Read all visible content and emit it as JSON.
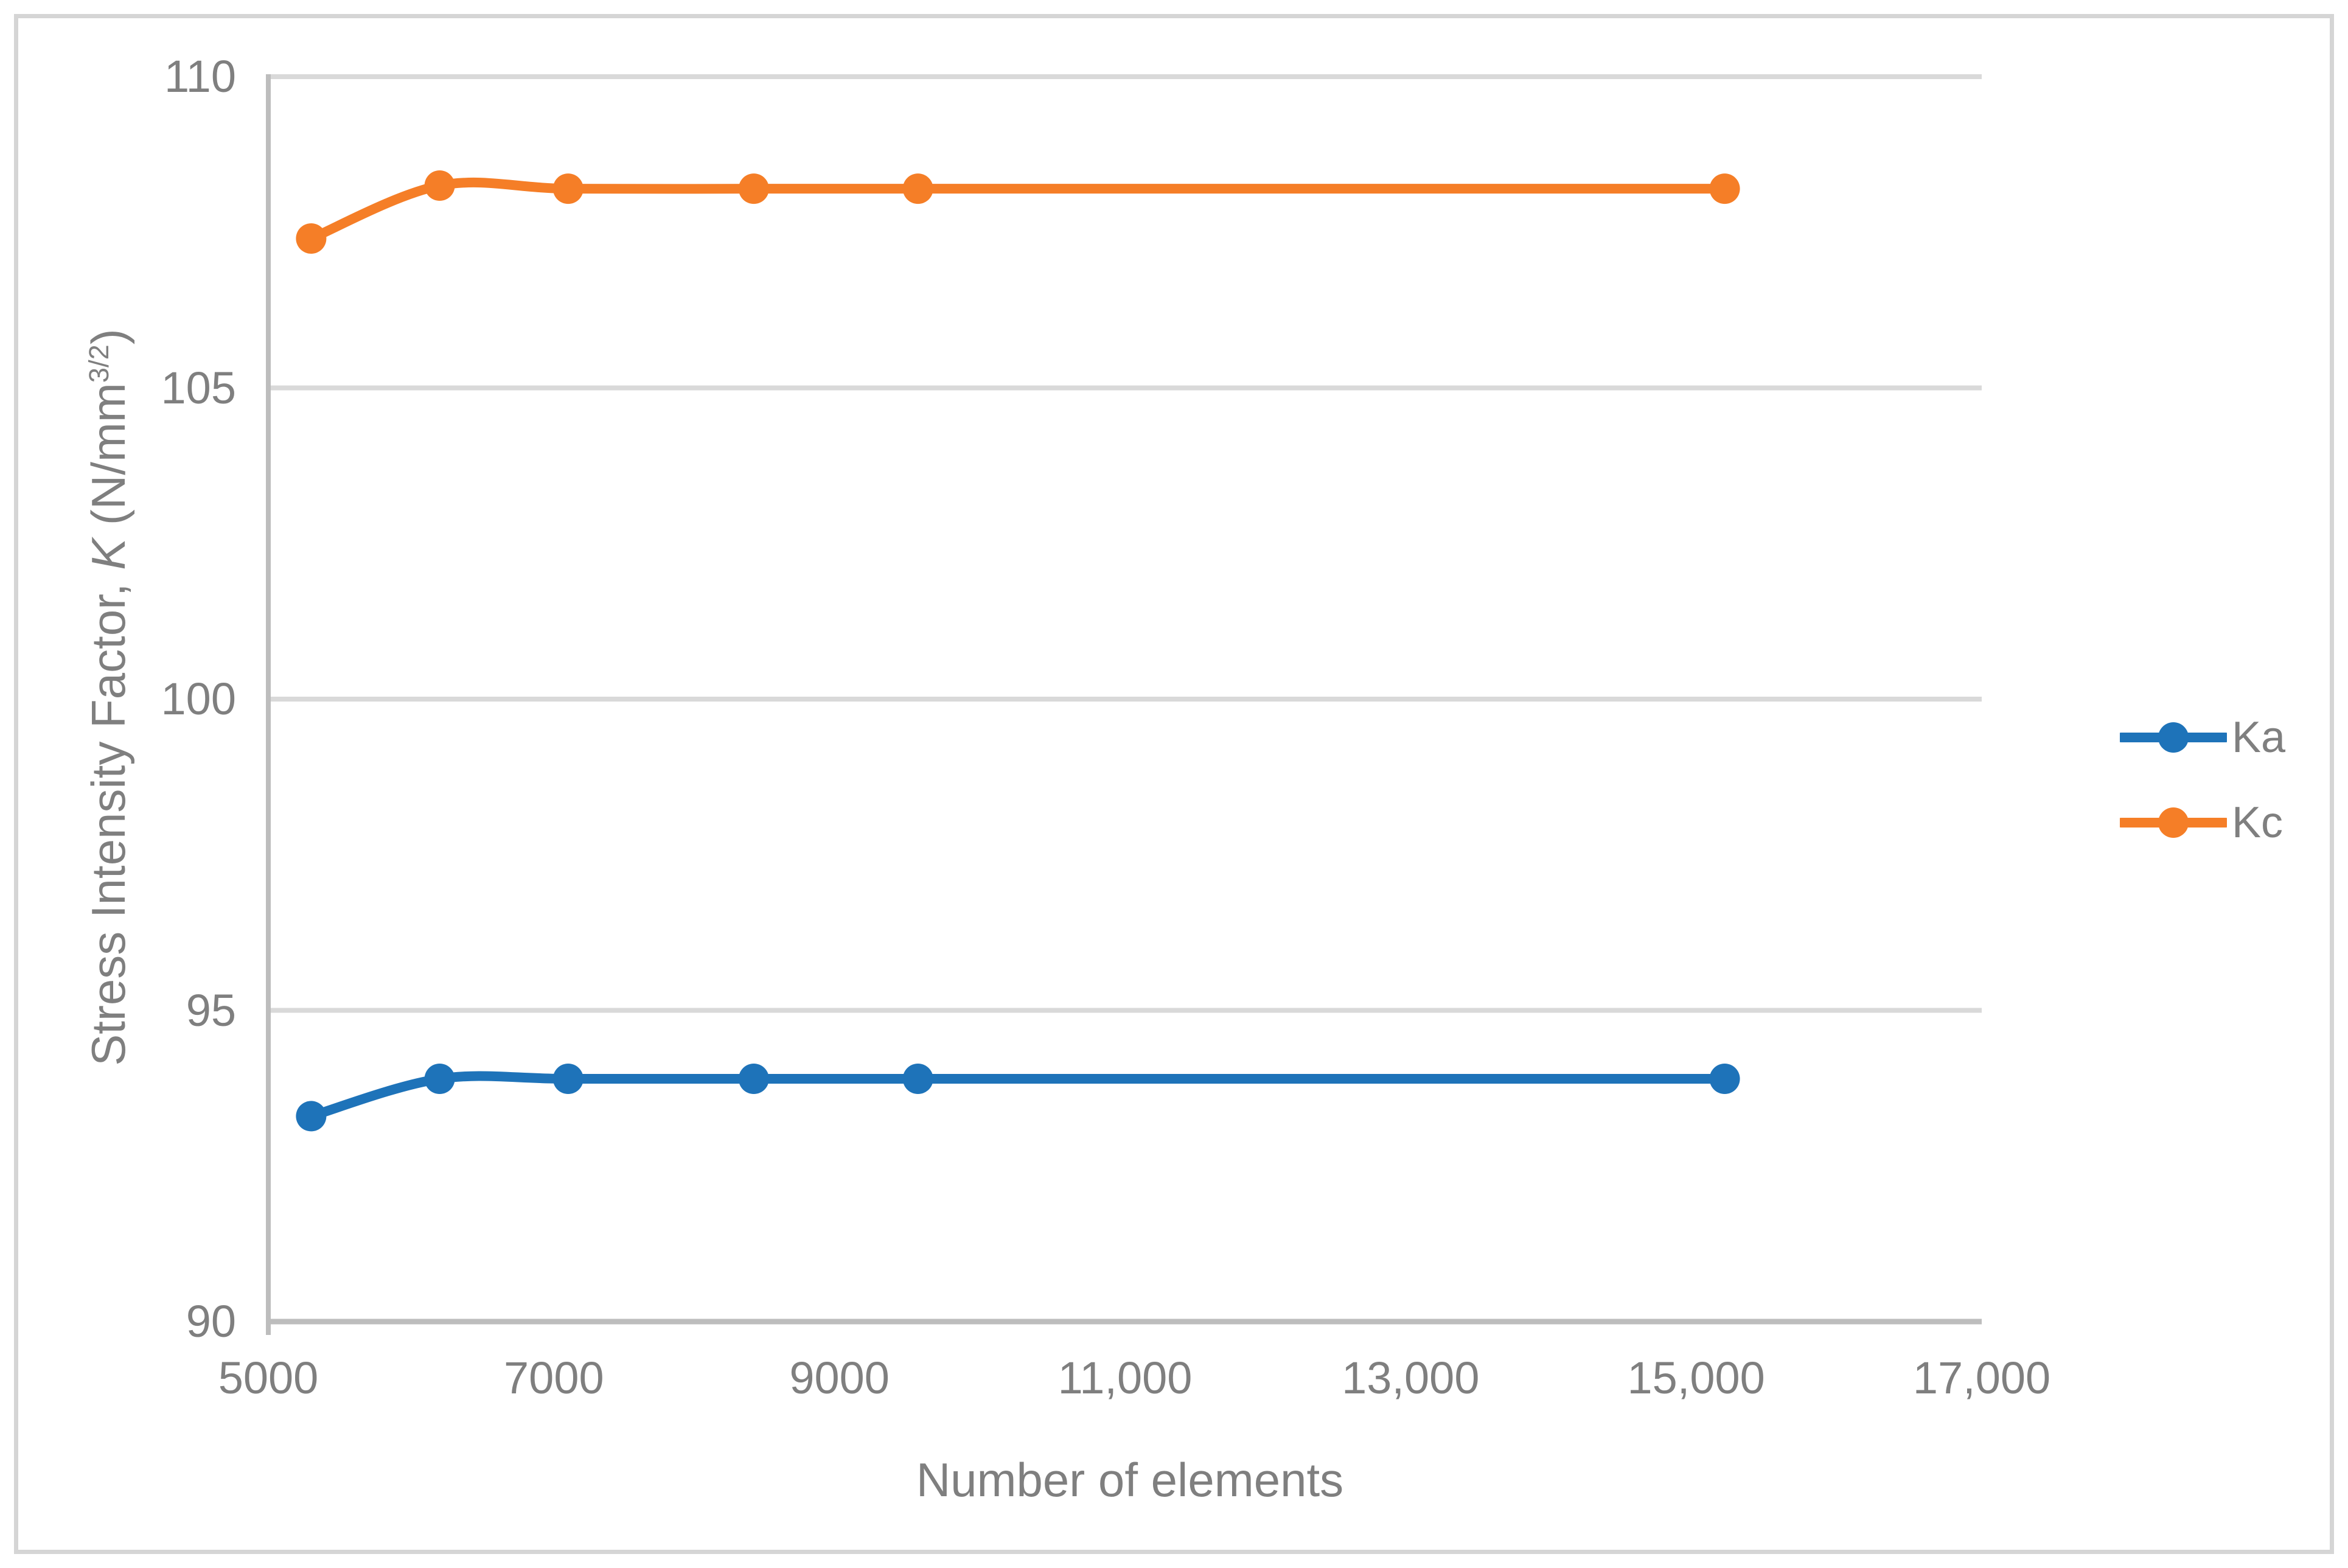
{
  "figure": {
    "kind": "static-chart-figure"
  },
  "colors": {
    "background": "#FFFFFF",
    "frame_border": "#D5D5D5",
    "gridline": "#D9D9D9",
    "axis_line": "#BDBDBD",
    "text": "#7F7F7F",
    "series_ka": "#1E73B9",
    "series_kc": "#F57E27"
  },
  "chart_data": {
    "type": "line",
    "title": "",
    "xlabel": "Number of elements",
    "ylabel": "Stress Intensity Factor, K (N/mm3/2)",
    "ylabel_parts": {
      "before_k": "Stress Intensity Factor, ",
      "k": "K",
      "after_k": " (N/mm",
      "superscript": "3/2",
      "close": ")"
    },
    "x": [
      5300,
      6200,
      7100,
      8400,
      9550,
      15200
    ],
    "series": [
      {
        "name": "Ka",
        "color": "#1E73B9",
        "marker": "circle",
        "values": [
          93.3,
          93.9,
          93.9,
          93.9,
          93.9,
          93.9
        ]
      },
      {
        "name": "Kc",
        "color": "#F57E27",
        "marker": "circle",
        "values": [
          107.4,
          108.25,
          108.2,
          108.2,
          108.2,
          108.2
        ]
      }
    ],
    "xlim": [
      5000,
      17000
    ],
    "ylim": [
      90,
      110
    ],
    "x_ticks": [
      {
        "value": 5000,
        "label": "5000"
      },
      {
        "value": 7000,
        "label": "7000"
      },
      {
        "value": 9000,
        "label": "9000"
      },
      {
        "value": 11000,
        "label": "11,000"
      },
      {
        "value": 13000,
        "label": "13,000"
      },
      {
        "value": 15000,
        "label": "15,000"
      },
      {
        "value": 17000,
        "label": "17,000"
      }
    ],
    "y_ticks": [
      {
        "value": 90,
        "label": "90"
      },
      {
        "value": 95,
        "label": "95"
      },
      {
        "value": 100,
        "label": "100"
      },
      {
        "value": 105,
        "label": "105"
      },
      {
        "value": 110,
        "label": "110"
      }
    ],
    "grid": "horizontal",
    "smooth": true,
    "legend_position": "right-middle"
  }
}
